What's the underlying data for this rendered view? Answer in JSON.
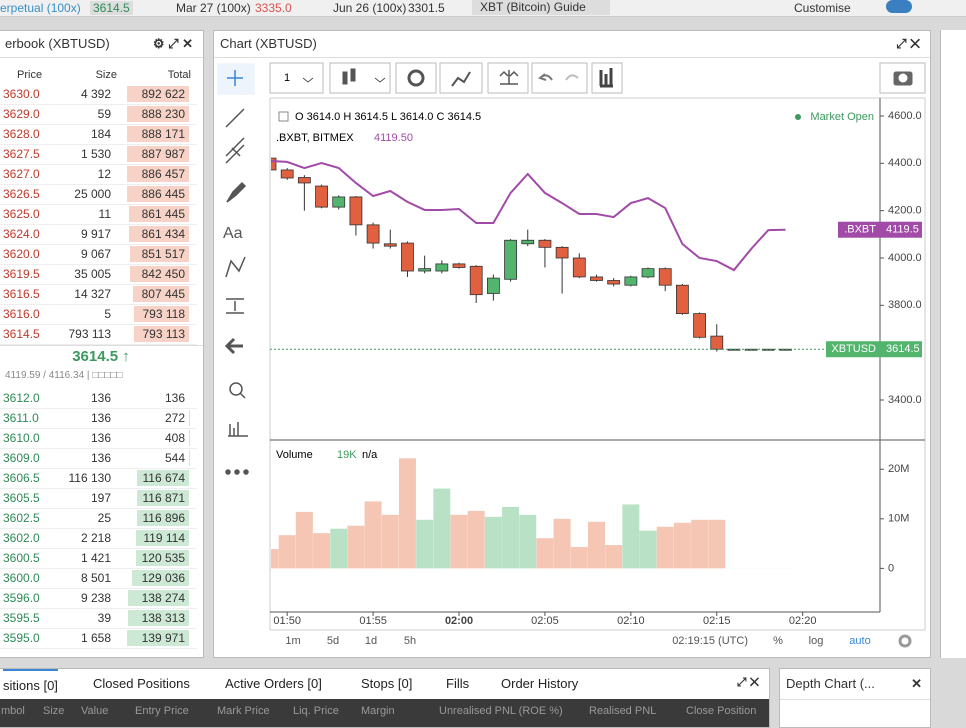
{
  "header": {
    "tickers": [
      {
        "name": "erpetual (100x)",
        "price": "3614.5"
      },
      {
        "name": "Mar 27 (100x)",
        "price": "3335.0"
      },
      {
        "name": "Jun 26 (100x)",
        "price": "3301.5"
      }
    ],
    "guide": "XBT (Bitcoin) Guide",
    "customise": "Customise"
  },
  "orderbook": {
    "title": "erbook (XBTUSD)",
    "columns": [
      "Price",
      "Size",
      "Total"
    ],
    "asks": [
      [
        "3630.0",
        "4 392",
        "892 622"
      ],
      [
        "3629.0",
        "59",
        "888 230"
      ],
      [
        "3628.0",
        "184",
        "888 171"
      ],
      [
        "3627.5",
        "1 530",
        "887 987"
      ],
      [
        "3627.0",
        "12",
        "886 457"
      ],
      [
        "3626.5",
        "25 000",
        "886 445"
      ],
      [
        "3625.0",
        "11",
        "861 445"
      ],
      [
        "3624.0",
        "9 917",
        "861 434"
      ],
      [
        "3620.0",
        "9 067",
        "851 517"
      ],
      [
        "3619.5",
        "35 005",
        "842 450"
      ],
      [
        "3616.5",
        "14 327",
        "807 445"
      ],
      [
        "3616.0",
        "5",
        "793 118"
      ],
      [
        "3614.5",
        "793 113",
        "793 113"
      ]
    ],
    "last_price": "3614.5",
    "index_info": "4119.59 / 4116.34 | □□□□□",
    "bids": [
      [
        "3612.0",
        "136",
        "136"
      ],
      [
        "3611.0",
        "136",
        "272"
      ],
      [
        "3610.0",
        "136",
        "408"
      ],
      [
        "3609.0",
        "136",
        "544"
      ],
      [
        "3606.5",
        "116 130",
        "116 674"
      ],
      [
        "3605.5",
        "197",
        "116 871"
      ],
      [
        "3602.5",
        "25",
        "116 896"
      ],
      [
        "3602.0",
        "2 218",
        "119 114"
      ],
      [
        "3600.5",
        "1 421",
        "120 535"
      ],
      [
        "3600.0",
        "8 501",
        "129 036"
      ],
      [
        "3596.0",
        "9 238",
        "138 274"
      ],
      [
        "3595.5",
        "39",
        "138 313"
      ],
      [
        "3595.0",
        "1 658",
        "139 971"
      ]
    ]
  },
  "chart_panel": {
    "toolbar_interval": "1",
    "ohlc": "O 3614.0  H 3614.5  L 3614.0  C 3614.5",
    "market_status": "Market Open",
    "last_bxbt": "4119.50",
    "volume_label": "Volume",
    "volume_value": "19K",
    "volume_na": "n/a",
    "price_tags": [
      {
        "label": ".BXBT",
        "value": "4119.5"
      },
      {
        "label": "XBTUSD",
        "value": "3614.5"
      }
    ],
    "ranges": [
      "1m",
      "5d",
      "1d",
      "5h"
    ],
    "clock": "02:19:15 (UTC)",
    "options": [
      "%",
      "log",
      "auto"
    ]
  },
  "chart_data": {
    "type": "candlestick",
    "title": "Chart (XBTUSD)",
    "x": [
      "01:49",
      "01:50",
      "01:51",
      "01:52",
      "01:53",
      "01:54",
      "01:55",
      "01:56",
      "01:57",
      "01:58",
      "01:59",
      "02:00",
      "02:01",
      "02:02",
      "02:03",
      "02:04",
      "02:05",
      "02:06",
      "02:07",
      "02:08",
      "02:09",
      "02:10",
      "02:11",
      "02:12",
      "02:13",
      "02:14",
      "02:15",
      "02:16",
      "02:17",
      "02:18",
      "02:19"
    ],
    "open": [
      4422,
      4372,
      4340,
      4304,
      4215,
      4258,
      4140,
      4060,
      4063,
      3945,
      3945,
      3975,
      3965,
      3850,
      3910,
      4060,
      4075,
      4045,
      4000,
      3920,
      3905,
      3885,
      3920,
      3955,
      3885,
      3765,
      3670,
      3614,
      3614,
      3614,
      3614
    ],
    "high": [
      4440,
      4380,
      4350,
      4310,
      4265,
      4262,
      4150,
      4120,
      4070,
      4010,
      3990,
      3980,
      3970,
      3930,
      4080,
      4120,
      4080,
      4050,
      4020,
      3930,
      3915,
      3925,
      3960,
      3960,
      3890,
      3770,
      3720,
      3614.5,
      3614.5,
      3614.5,
      3614.5
    ],
    "low": [
      4360,
      4330,
      4200,
      4210,
      4205,
      4095,
      4040,
      4040,
      3920,
      3935,
      3935,
      3955,
      3810,
      3820,
      3900,
      4050,
      3960,
      3850,
      3915,
      3900,
      3880,
      3880,
      3915,
      3860,
      3760,
      3660,
      3605,
      3614,
      3614,
      3614,
      3614
    ],
    "close": [
      4372,
      4338,
      4317,
      4215,
      4258,
      4140,
      4063,
      4050,
      3945,
      3955,
      3975,
      3960,
      3845,
      3915,
      4075,
      4075,
      4045,
      4000,
      3920,
      3905,
      3890,
      3920,
      3955,
      3885,
      3765,
      3665,
      3614.5,
      3614.5,
      3614.5,
      3614.5,
      3614.5
    ],
    "volume": [
      3.9,
      6.7,
      11.4,
      7.1,
      8.0,
      8.6,
      13.5,
      10.8,
      22.2,
      9.8,
      16.1,
      10.8,
      11.6,
      10.4,
      12.4,
      10.8,
      6.1,
      10.0,
      4.3,
      9.4,
      4.7,
      12.9,
      7.6,
      8.4,
      9.2,
      9.8,
      9.8,
      0.02,
      0.02,
      0.02,
      0.02
    ],
    "up_color": "#52b46d",
    "down_color": "#e0603f",
    "volume_up_color": "#b9e1c5",
    "volume_down_color": "#f6c6b5",
    "series": [
      {
        "name": ".BXBT, BITMEX",
        "color": "#a24aa8",
        "values": [
          4410,
          4406,
          4380,
          4401,
          4380,
          4317,
          4262,
          4283,
          4237,
          4203,
          4203,
          4207,
          4148,
          4148,
          4275,
          4355,
          4275,
          4232,
          4186,
          4186,
          4173,
          4232,
          4253,
          4211,
          4059,
          4000,
          3987,
          3949,
          4038,
          4118,
          4119.5
        ]
      }
    ],
    "xlim": [
      "01:49",
      "02:24:30"
    ],
    "xticks": [
      "01:50",
      "01:55",
      "02:00",
      "02:05",
      "02:10",
      "02:15",
      "02:20"
    ],
    "ylim": [
      3231,
      4676
    ],
    "yticks": [
      {
        "value": 3400,
        "label": "3400.0"
      },
      {
        "value": 3600,
        "label": "3600.0"
      },
      {
        "value": 3800,
        "label": "3800.0"
      },
      {
        "value": 4000,
        "label": "4000.0"
      },
      {
        "value": 4200,
        "label": "4200.0"
      },
      {
        "value": 4400,
        "label": "4400.0"
      },
      {
        "value": 4600,
        "label": "4600.0"
      }
    ],
    "y2lim": [
      -8.8,
      25.9
    ],
    "y2ticks": [
      0,
      {
        "value": 10,
        "label": "10M"
      },
      {
        "value": 20,
        "label": "20M"
      }
    ],
    "grid": false
  },
  "bottom": {
    "tabs": [
      "sitions [0]",
      "Closed Positions",
      "Active Orders [0]",
      "Stops [0]",
      "Fills",
      "Order History"
    ],
    "columns": [
      "mbol",
      "Size",
      "Value",
      "Entry Price",
      "Mark Price",
      "Liq. Price",
      "Margin",
      "Unrealised PNL (ROE %)",
      "Realised PNL",
      "Close Position"
    ],
    "depth_title": "Depth Chart (..."
  }
}
